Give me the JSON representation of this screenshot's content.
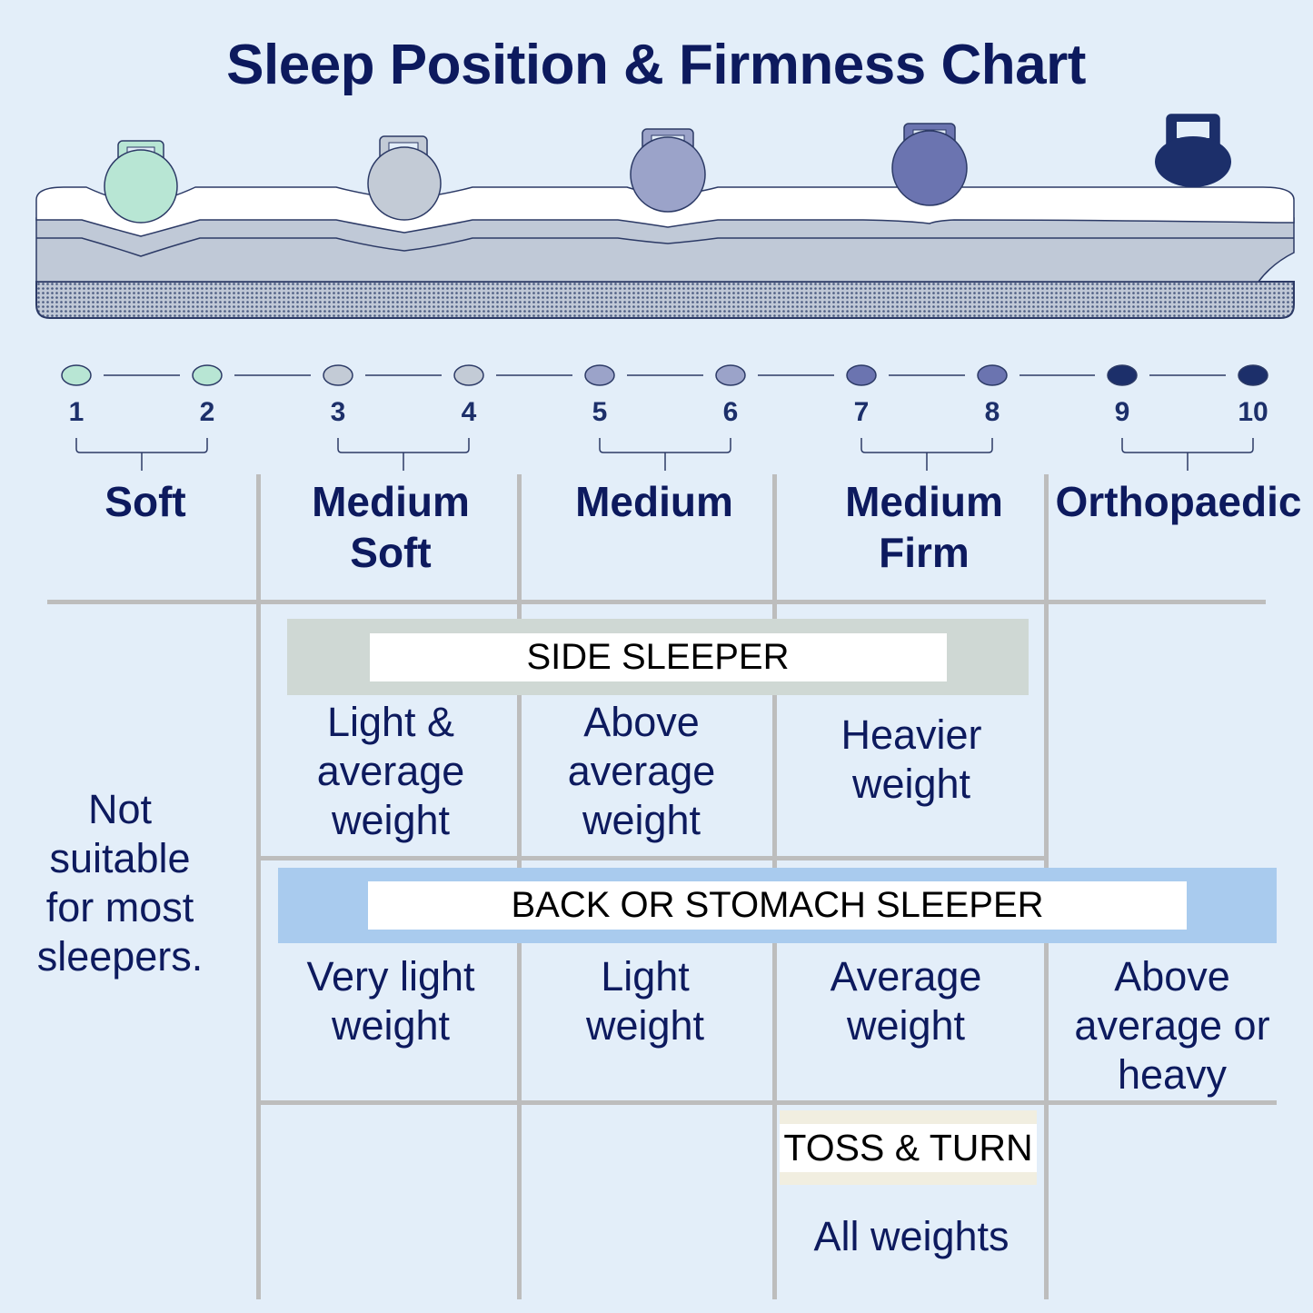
{
  "title": "Sleep Position & Firmness Chart",
  "colors": {
    "background": "#e3eef9",
    "text": "#0d1a5e",
    "soft": "#b8e6d4",
    "medium_soft": "#c3cbd6",
    "medium": "#9ba3c9",
    "medium_firm": "#6b74b0",
    "orthopaedic": "#1c2f6a",
    "side_band": "#cfd8d4",
    "back_band": "#a9cbee",
    "toss_band": "#f1eee0"
  },
  "scale": [
    "1",
    "2",
    "3",
    "4",
    "5",
    "6",
    "7",
    "8",
    "9",
    "10"
  ],
  "firmness_levels": [
    {
      "lines": [
        "Soft"
      ],
      "icon": "kettlebell-icon"
    },
    {
      "lines": [
        "Medium",
        "Soft"
      ],
      "icon": "kettlebell-icon"
    },
    {
      "lines": [
        "Medium"
      ],
      "icon": "kettlebell-icon"
    },
    {
      "lines": [
        "Medium",
        "Firm"
      ],
      "icon": "kettlebell-icon"
    },
    {
      "lines": [
        "Orthopaedic"
      ],
      "icon": "kettlebell-icon"
    }
  ],
  "not_suitable": [
    "Not",
    "suitable",
    "for most",
    "sleepers."
  ],
  "side_sleeper": {
    "label": "SIDE SLEEPER",
    "cells": [
      [
        "Light &",
        "average",
        "weight"
      ],
      [
        "Above",
        "average",
        "weight"
      ],
      [
        "Heavier",
        "weight"
      ]
    ]
  },
  "back_sleeper": {
    "label": "BACK OR STOMACH SLEEPER",
    "cells": [
      [
        "Very light",
        "weight"
      ],
      [
        "Light",
        "weight"
      ],
      [
        "Average",
        "weight"
      ],
      [
        "Above",
        "average or",
        "heavy"
      ]
    ]
  },
  "toss_turn": {
    "label": "TOSS & TURN",
    "cell": "All weights"
  }
}
